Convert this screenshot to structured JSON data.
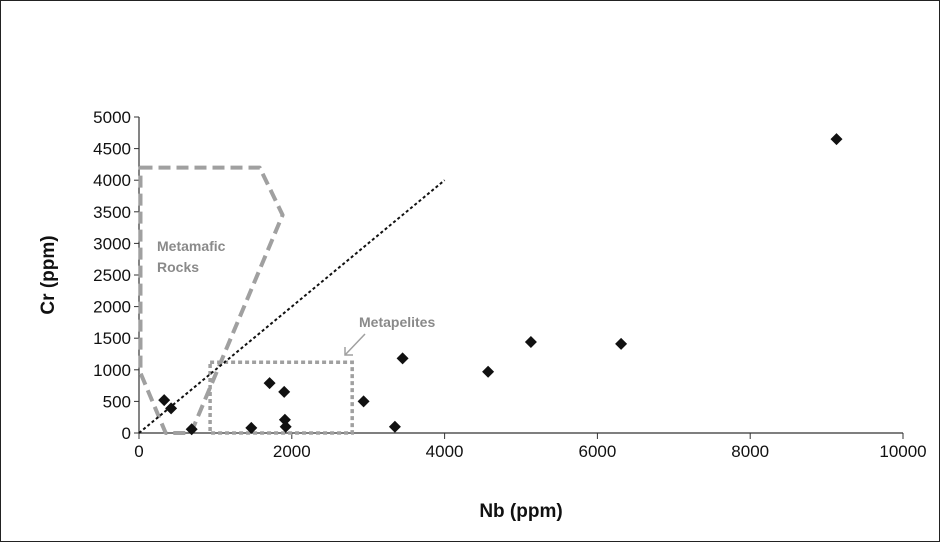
{
  "chart_data": {
    "type": "scatter",
    "xlabel": "Nb (ppm)",
    "ylabel": "Cr (ppm)",
    "xlim": [
      0,
      10000
    ],
    "ylim": [
      0,
      5000
    ],
    "x_ticks": [
      "0",
      "2000",
      "4000",
      "6000",
      "8000",
      "10000"
    ],
    "y_ticks": [
      "0",
      "500",
      "1000",
      "1500",
      "2000",
      "2500",
      "3000",
      "3500",
      "4000",
      "4500",
      "5000"
    ],
    "grid": false,
    "marker": "diamond",
    "colors": {
      "points": "#111111",
      "fields": "#a0a0a0",
      "trend": "#111111"
    },
    "points": [
      {
        "x": 330,
        "y": 520
      },
      {
        "x": 420,
        "y": 390
      },
      {
        "x": 690,
        "y": 60
      },
      {
        "x": 1470,
        "y": 80
      },
      {
        "x": 1710,
        "y": 790
      },
      {
        "x": 1900,
        "y": 650
      },
      {
        "x": 1910,
        "y": 210
      },
      {
        "x": 1920,
        "y": 100
      },
      {
        "x": 2940,
        "y": 500
      },
      {
        "x": 3350,
        "y": 100
      },
      {
        "x": 3450,
        "y": 1180
      },
      {
        "x": 4570,
        "y": 970
      },
      {
        "x": 5130,
        "y": 1440
      },
      {
        "x": 6310,
        "y": 1410
      },
      {
        "x": 9130,
        "y": 4650
      }
    ],
    "trend_line": [
      {
        "x": 0,
        "y": 0
      },
      {
        "x": 4000,
        "y": 4000
      }
    ],
    "fields": [
      {
        "label_lines": [
          "Metamafic",
          "Rocks"
        ],
        "polygon": [
          {
            "x": 20,
            "y": 4200
          },
          {
            "x": 1580,
            "y": 4200
          },
          {
            "x": 1880,
            "y": 3450
          },
          {
            "x": 680,
            "y": 0
          },
          {
            "x": 350,
            "y": 0
          },
          {
            "x": 20,
            "y": 950
          }
        ]
      },
      {
        "label_lines": [
          "Metapelites"
        ],
        "polygon": [
          {
            "x": 930,
            "y": 1120
          },
          {
            "x": 2790,
            "y": 1120
          },
          {
            "x": 2790,
            "y": 0
          },
          {
            "x": 930,
            "y": 0
          }
        ]
      }
    ]
  }
}
